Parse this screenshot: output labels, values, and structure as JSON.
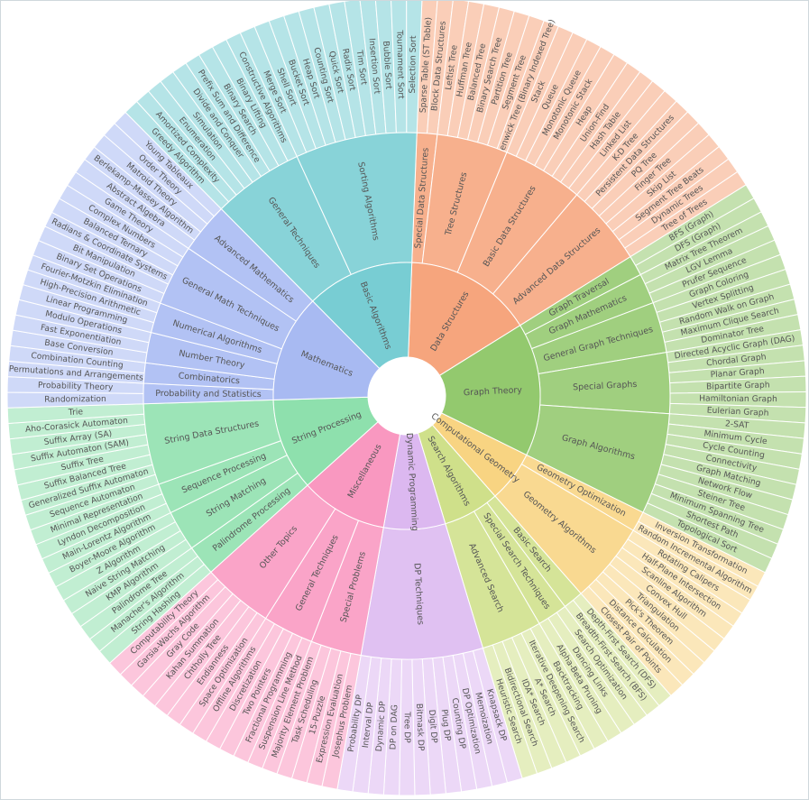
{
  "chart_data": {
    "type": "sunburst",
    "title": "",
    "root": [
      {
        "name": "Data Structures",
        "color": "#f6a57d",
        "children": [
          {
            "name": "Special Data Structures",
            "children": [
              "Sparse Table (ST Table)",
              "Block Data Structures"
            ]
          },
          {
            "name": "Tree Structures",
            "children": [
              "Leftist Tree",
              "Huffman Tree",
              "Balanced Tree",
              "Binary Search Tree",
              "Partition Tree",
              "Segment Tree",
              "Fenwick Tree (Binary Indexed Tree)"
            ]
          },
          {
            "name": "Basic Data Structures",
            "children": [
              "Stack",
              "Queue",
              "Monotonic Queue",
              "Monotonic Stack",
              "Heap",
              "Union-Find",
              "Hash Table",
              "Linked List"
            ]
          },
          {
            "name": "Advanced Data Structures",
            "children": [
              "K-D Tree",
              "Persistent Data Structures",
              "PQ Tree",
              "Finger Tree",
              "Skip List",
              "Segment Tree Beats",
              "Dynamic Trees",
              "Tree of Trees"
            ]
          }
        ]
      },
      {
        "name": "Graph Theory",
        "color": "#93c96e",
        "children": [
          {
            "name": "Graph Traversal",
            "children": [
              "BFS (Graph)",
              "DFS (Graph)"
            ]
          },
          {
            "name": "Graph Mathematics",
            "children": [
              "Matrix Tree Theorem",
              "LGV Lemma",
              "Prufer Sequence"
            ]
          },
          {
            "name": "General Graph Techniques",
            "children": [
              "Graph Coloring",
              "Vertex Splitting",
              "Random Walk on Graph",
              "Maximum Clique Search",
              "Dominator Tree"
            ]
          },
          {
            "name": "Special Graphs",
            "children": [
              "Directed Acyclic Graph (DAG)",
              "Chordal Graph",
              "Planar Graph",
              "Bipartite Graph",
              "Hamiltonian Graph",
              "Eulerian Graph"
            ]
          },
          {
            "name": "Graph Algorithms",
            "children": [
              "2-SAT",
              "Minimum Cycle",
              "Cycle Counting",
              "Connectivity",
              "Graph Matching",
              "Network Flow",
              "Steiner Tree",
              "Minimum Spanning Tree",
              "Shortest Path",
              "Topological Sort"
            ]
          }
        ]
      },
      {
        "name": "Computational Geometry",
        "color": "#f8d482",
        "children": [
          {
            "name": "Geometry Optimization",
            "children": [
              "Inversion Transformation",
              "Random Incremental Algorithm"
            ]
          },
          {
            "name": "Geometry Algorithms",
            "children": [
              "Rotating Calipers",
              "Half-Plane Intersection",
              "Scanline Algorithm",
              "Convex Hull",
              "Triangulation",
              "Pick's Theorem",
              "Distance Calculation",
              "Closest Pair of Points"
            ]
          }
        ]
      },
      {
        "name": "Search Algorithms",
        "color": "#cfe08a",
        "children": [
          {
            "name": "Basic Search",
            "children": [
              "Depth-First Search (DFS)",
              "Breadth-First Search (BFS)"
            ]
          },
          {
            "name": "Special Search Techniques",
            "children": [
              "Search Optimization",
              "Dancing Links",
              "Alpha-Beta Pruning"
            ]
          },
          {
            "name": "Advanced Search",
            "children": [
              "Backtracking",
              "Iterative Deepening Search",
              "A* Search",
              "IDA* Search",
              "Bidirectional Search",
              "Heuristic Search"
            ]
          }
        ]
      },
      {
        "name": "Dynamic Programming",
        "color": "#dcb8f0",
        "children": [
          {
            "name": "DP Techniques",
            "children": [
              "Knapsack DP",
              "Memoization",
              "DP Optimization",
              "Counting DP",
              "Plug DP",
              "Digit DP",
              "Bitmask DP",
              "Tree DP",
              "DP on DAG",
              "Dynamic DP",
              "Interval DP",
              "Probability DP"
            ]
          }
        ]
      },
      {
        "name": "Miscellaneous",
        "color": "#f998c0",
        "children": [
          {
            "name": "Special Problems",
            "children": [
              "Josephus Problem",
              "Expression Evaluation",
              "15-Puzzle",
              "Task Scheduling",
              "Majority Element Problem"
            ]
          },
          {
            "name": "General Techniques",
            "children": [
              "Suspension Line Method",
              "Fractional Programming",
              "Two Pointers",
              "Discretization",
              "Offline Algorithms"
            ]
          },
          {
            "name": "Other Topics",
            "children": [
              "Space Optimization",
              "Endianness",
              "Chtholly Tree",
              "Kahan Summation",
              "Gray Code",
              "Garsia-Wachs Algorithm",
              "Computability Theory"
            ]
          }
        ]
      },
      {
        "name": "String Processing",
        "color": "#8ee0ad",
        "children": [
          {
            "name": "Palindrome Processing",
            "children": [
              "String Hashing",
              "Manacher's Algorithm",
              "Palindrome Tree"
            ]
          },
          {
            "name": "String Matching",
            "children": [
              "KMP Algorithm",
              "Naive String Matching",
              "Z Algorithm",
              "Boyer-Moore Algorithm"
            ]
          },
          {
            "name": "Sequence Processing",
            "children": [
              "Main-Lorentz Algorithm",
              "Lyndon Decomposition",
              "Minimal Representation"
            ]
          },
          {
            "name": "String Data Structures",
            "children": [
              "Sequence Automaton",
              "Generalized Suffix Automaton",
              "Suffix Balanced Tree",
              "Suffix Tree",
              "Suffix Automaton (SAM)",
              "Suffix Array (SA)",
              "Aho-Corasick Automaton",
              "Trie"
            ]
          }
        ]
      },
      {
        "name": "Mathematics",
        "color": "#a8baf2",
        "children": [
          {
            "name": "Probability and Statistics",
            "children": [
              "Randomization",
              "Probability Theory"
            ]
          },
          {
            "name": "Combinatorics",
            "children": [
              "Permutations and Arrangements",
              "Combination Counting"
            ]
          },
          {
            "name": "Number Theory",
            "children": [
              "Base Conversion",
              "Fast Exponentiation",
              "Modulo Operations"
            ]
          },
          {
            "name": "Numerical Algorithms",
            "children": [
              "Linear Programming",
              "High-Precision Arithmetic",
              "Fourier-Motzkin Elimination"
            ]
          },
          {
            "name": "General Math Techniques",
            "children": [
              "Binary Set Operations",
              "Bit Manipulation",
              "Radians & Coordinate Systems",
              "Balanced Ternary",
              "Complex Numbers",
              "Game Theory"
            ]
          },
          {
            "name": "Advanced Mathematics",
            "children": [
              "Abstract Algebra",
              "Berlekamp–Massey Algorithm",
              "Matroid Theory",
              "Order Theory",
              "Young Tableaux"
            ]
          }
        ]
      },
      {
        "name": "Basic Algorithms",
        "color": "#78cdd3",
        "children": [
          {
            "name": "General Techniques",
            "children": [
              "Greedy Algorithm",
              "Amortized Complexity",
              "Enumeration",
              "Simulation",
              "Divide and Conquer",
              "Prefix Sum and Difference",
              "Binary Search",
              "Binary Lifting",
              "Constructive Algorithms"
            ]
          },
          {
            "name": "Sorting Algorithms",
            "children": [
              "Merge Sort",
              "Shell Sort",
              "Bucket Sort",
              "Heap Sort",
              "Counting Sort",
              "Quick Sort",
              "Radix Sort",
              "Tim Sort",
              "Insertion Sort",
              "Bubble Sort",
              "Tournament Sort",
              "Selection Sort"
            ]
          }
        ]
      }
    ]
  }
}
